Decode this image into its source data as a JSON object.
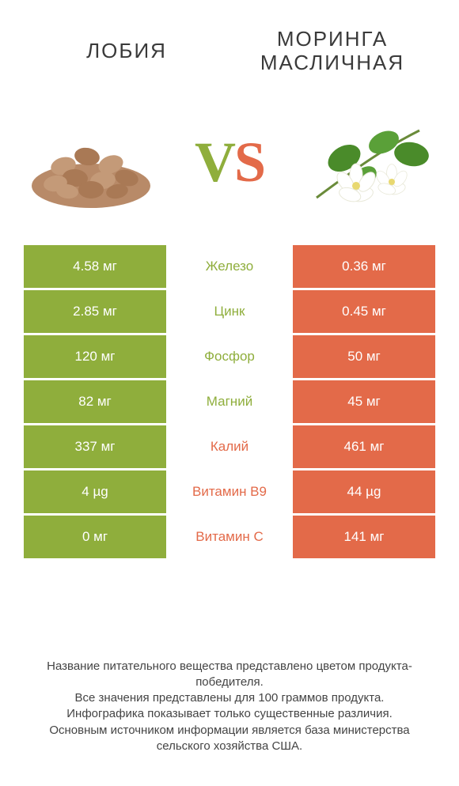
{
  "colors": {
    "left": "#8fae3c",
    "right": "#e36a49",
    "background": "#ffffff",
    "text": "#3a3a3a"
  },
  "products": {
    "left": {
      "title": "ЛОБИЯ"
    },
    "right": {
      "title": "МОРИНГА МАСЛИЧНАЯ"
    }
  },
  "vs": {
    "v": "V",
    "s": "S"
  },
  "table": {
    "rows": [
      {
        "left": "4.58 мг",
        "label": "Железо",
        "right": "0.36 мг",
        "winner": "left"
      },
      {
        "left": "2.85 мг",
        "label": "Цинк",
        "right": "0.45 мг",
        "winner": "left"
      },
      {
        "left": "120 мг",
        "label": "Фосфор",
        "right": "50 мг",
        "winner": "left"
      },
      {
        "left": "82 мг",
        "label": "Магний",
        "right": "45 мг",
        "winner": "left"
      },
      {
        "left": "337 мг",
        "label": "Калий",
        "right": "461 мг",
        "winner": "right"
      },
      {
        "left": "4 µg",
        "label": "Витамин B9",
        "right": "44 µg",
        "winner": "right"
      },
      {
        "left": "0 мг",
        "label": "Витамин C",
        "right": "141 мг",
        "winner": "right"
      }
    ]
  },
  "footer": {
    "line1": "Название питательного вещества представлено цветом продукта-победителя.",
    "line2": "Все значения представлены для 100 граммов продукта.",
    "line3": "Инфографика показывает только существенные различия.",
    "line4": "Основным источником информации является база министерства сельского хозяйства США."
  }
}
